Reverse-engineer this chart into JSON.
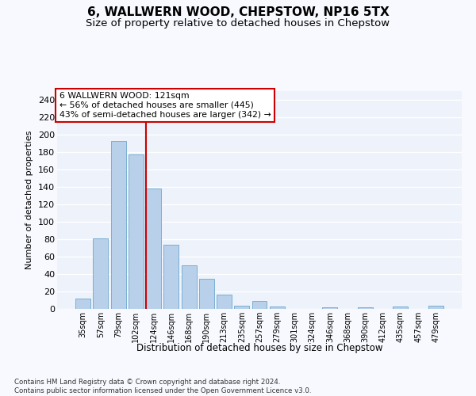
{
  "title": "6, WALLWERN WOOD, CHEPSTOW, NP16 5TX",
  "subtitle": "Size of property relative to detached houses in Chepstow",
  "xlabel": "Distribution of detached houses by size in Chepstow",
  "ylabel": "Number of detached properties",
  "categories": [
    "35sqm",
    "57sqm",
    "79sqm",
    "102sqm",
    "124sqm",
    "146sqm",
    "168sqm",
    "190sqm",
    "213sqm",
    "235sqm",
    "257sqm",
    "279sqm",
    "301sqm",
    "324sqm",
    "346sqm",
    "368sqm",
    "390sqm",
    "412sqm",
    "435sqm",
    "457sqm",
    "479sqm"
  ],
  "values": [
    12,
    81,
    193,
    177,
    138,
    74,
    50,
    35,
    16,
    4,
    9,
    3,
    0,
    0,
    2,
    0,
    2,
    0,
    3,
    0,
    4
  ],
  "bar_color": "#b8d0ea",
  "bar_edge_color": "#7aafd4",
  "background_color": "#edf2fb",
  "grid_color": "#ffffff",
  "annotation_title": "6 WALLWERN WOOD: 121sqm",
  "annotation_line1": "← 56% of detached houses are smaller (445)",
  "annotation_line2": "43% of semi-detached houses are larger (342) →",
  "vline_x": 3.57,
  "ylim": [
    0,
    250
  ],
  "yticks": [
    0,
    20,
    40,
    60,
    80,
    100,
    120,
    140,
    160,
    180,
    200,
    220,
    240
  ],
  "footer_line1": "Contains HM Land Registry data © Crown copyright and database right 2024.",
  "footer_line2": "Contains public sector information licensed under the Open Government Licence v3.0.",
  "title_fontsize": 11,
  "subtitle_fontsize": 9.5,
  "annotation_box_color": "#ffffff",
  "annotation_box_edge": "#cc0000",
  "vline_color": "#cc0000",
  "fig_bg": "#f7f9fe"
}
